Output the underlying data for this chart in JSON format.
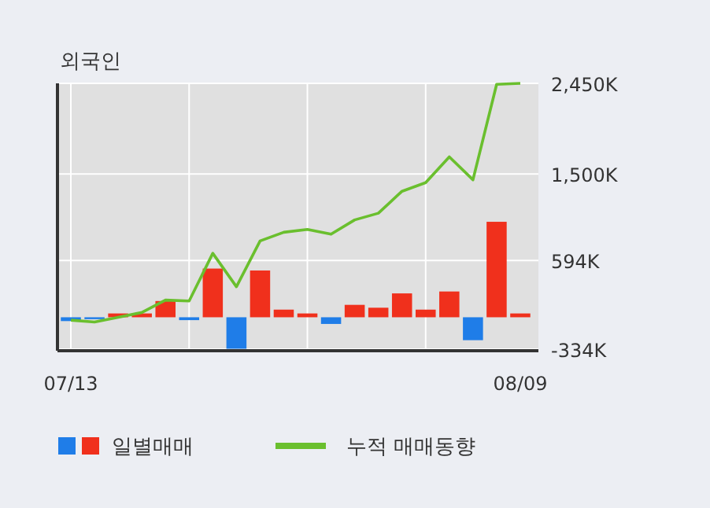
{
  "chart_data": {
    "type": "bar",
    "title": "외국인",
    "categories": [
      "07/13",
      null,
      null,
      null,
      null,
      null,
      null,
      null,
      null,
      null,
      null,
      null,
      null,
      null,
      null,
      null,
      null,
      null,
      null,
      "08/09"
    ],
    "series": [
      {
        "name": "일별매매",
        "colors": [
          "#1f7de8",
          "#1f7de8",
          "#f0301c",
          "#f0301c",
          "#f0301c",
          "#1f7de8",
          "#f0301c",
          "#1f7de8",
          "#f0301c",
          "#f0301c",
          "#f0301c",
          "#1f7de8",
          "#f0301c",
          "#f0301c",
          "#f0301c",
          "#f0301c",
          "#f0301c",
          "#1f7de8",
          "#f0301c",
          "#f0301c"
        ],
        "values": [
          -40,
          -20,
          40,
          40,
          170,
          -30,
          510,
          -330,
          490,
          80,
          40,
          -70,
          130,
          100,
          250,
          80,
          270,
          -240,
          1000,
          40
        ]
      },
      {
        "name": "누적 매매동향",
        "type": "line",
        "color": "#6abf2e",
        "values": [
          -30,
          -50,
          0,
          50,
          180,
          170,
          670,
          320,
          800,
          890,
          920,
          870,
          1020,
          1090,
          1320,
          1410,
          1680,
          1440,
          2440,
          2450
        ]
      }
    ],
    "ylim": [
      -334,
      2450
    ],
    "yticks": [
      {
        "value": -334,
        "label": "-334K"
      },
      {
        "value": 594,
        "label": "594K"
      },
      {
        "value": 1500,
        "label": "1,500K"
      },
      {
        "value": 2450,
        "label": "2,450K"
      }
    ],
    "grid": true,
    "legend": "bottom",
    "marker": "none",
    "line_style": "solid"
  }
}
